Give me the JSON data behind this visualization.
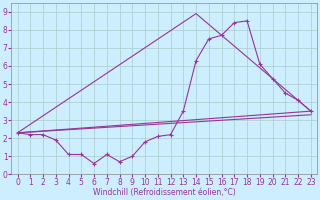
{
  "title": "",
  "xlabel": "Windchill (Refroidissement éolien,°C)",
  "bg_color": "#cceeff",
  "grid_color": "#aacccc",
  "line_color": "#993399",
  "xlim": [
    -0.5,
    23.5
  ],
  "ylim": [
    0,
    9.5
  ],
  "xticks": [
    0,
    1,
    2,
    3,
    4,
    5,
    6,
    7,
    8,
    9,
    10,
    11,
    12,
    13,
    14,
    15,
    16,
    17,
    18,
    19,
    20,
    21,
    22,
    23
  ],
  "yticks": [
    0,
    1,
    2,
    3,
    4,
    5,
    6,
    7,
    8,
    9
  ],
  "series1_x": [
    0,
    1,
    2,
    3,
    4,
    5,
    6,
    7,
    8,
    9,
    10,
    11,
    12,
    13,
    14,
    15,
    16,
    17,
    18,
    19,
    20,
    21,
    22,
    23
  ],
  "series1_y": [
    2.3,
    2.2,
    2.2,
    1.9,
    1.1,
    1.1,
    0.6,
    1.1,
    0.7,
    1.0,
    1.8,
    2.1,
    2.2,
    3.5,
    6.3,
    7.5,
    7.7,
    8.4,
    8.5,
    6.1,
    5.3,
    4.5,
    4.1,
    3.5
  ],
  "series2_x": [
    0,
    23
  ],
  "series2_y": [
    2.3,
    3.5
  ],
  "series3_x": [
    0,
    14,
    23
  ],
  "series3_y": [
    2.3,
    8.9,
    3.5
  ],
  "series4_x": [
    0,
    23
  ],
  "series4_y": [
    2.3,
    3.3
  ],
  "tick_fontsize": 5.5,
  "xlabel_fontsize": 5.5
}
